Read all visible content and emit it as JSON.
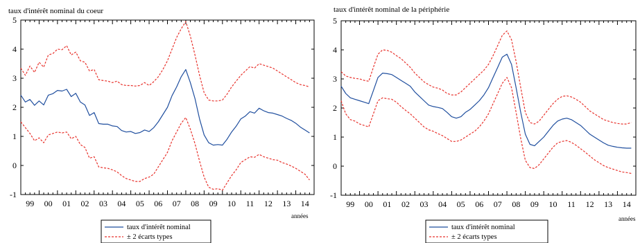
{
  "chart_data": [
    {
      "type": "line",
      "title": "taux d'intérêt nominal du coeur",
      "xlabel": "années",
      "ylabel": "",
      "ylim": [
        -1,
        5
      ],
      "yticks": [
        -1,
        0,
        1,
        2,
        3,
        4,
        5
      ],
      "xlim": [
        1999.0,
        2015.0
      ],
      "xtick_labels": [
        "99",
        "00",
        "01",
        "02",
        "03",
        "04",
        "05",
        "06",
        "07",
        "08",
        "09",
        "10",
        "11",
        "12",
        "13",
        "14"
      ],
      "grid": false,
      "legend_position": "bottom-center",
      "series": [
        {
          "name": "taux d'intérêt nominal",
          "color": "#1f4e9e",
          "style": "solid",
          "x": [
            1999.0,
            1999.25,
            1999.5,
            1999.75,
            2000.0,
            2000.25,
            2000.5,
            2000.75,
            2001.0,
            2001.25,
            2001.5,
            2001.75,
            2002.0,
            2002.25,
            2002.5,
            2002.75,
            2003.0,
            2003.25,
            2003.5,
            2003.75,
            2004.0,
            2004.25,
            2004.5,
            2004.75,
            2005.0,
            2005.25,
            2005.5,
            2005.75,
            2006.0,
            2006.25,
            2006.5,
            2006.75,
            2007.0,
            2007.25,
            2007.5,
            2007.75,
            2008.0,
            2008.25,
            2008.5,
            2008.75,
            2009.0,
            2009.25,
            2009.5,
            2009.75,
            2010.0,
            2010.25,
            2010.5,
            2010.75,
            2011.0,
            2011.25,
            2011.5,
            2011.75,
            2012.0,
            2012.25,
            2012.5,
            2012.75,
            2013.0,
            2013.25,
            2013.5,
            2013.75,
            2014.0,
            2014.25,
            2014.5,
            2014.75
          ],
          "values": [
            2.42,
            2.18,
            2.27,
            2.07,
            2.22,
            2.08,
            2.42,
            2.47,
            2.58,
            2.56,
            2.62,
            2.37,
            2.48,
            2.18,
            2.08,
            1.72,
            1.82,
            1.44,
            1.42,
            1.42,
            1.36,
            1.34,
            1.2,
            1.15,
            1.17,
            1.1,
            1.13,
            1.22,
            1.17,
            1.3,
            1.5,
            1.75,
            2.0,
            2.4,
            2.7,
            3.05,
            3.3,
            2.85,
            2.3,
            1.6,
            1.05,
            0.78,
            0.7,
            0.72,
            0.7,
            0.9,
            1.15,
            1.35,
            1.6,
            1.7,
            1.85,
            1.8,
            1.97,
            1.88,
            1.82,
            1.8,
            1.75,
            1.7,
            1.62,
            1.55,
            1.45,
            1.32,
            1.22,
            1.12
          ]
        },
        {
          "name": "± 2 écarts types",
          "color": "#e8322c",
          "style": "dashed",
          "x": [
            1999.0,
            1999.25,
            1999.5,
            1999.75,
            2000.0,
            2000.25,
            2000.5,
            2000.75,
            2001.0,
            2001.25,
            2001.5,
            2001.75,
            2002.0,
            2002.25,
            2002.5,
            2002.75,
            2003.0,
            2003.25,
            2003.5,
            2003.75,
            2004.0,
            2004.25,
            2004.5,
            2004.75,
            2005.0,
            2005.25,
            2005.5,
            2005.75,
            2006.0,
            2006.25,
            2006.5,
            2006.75,
            2007.0,
            2007.25,
            2007.5,
            2007.75,
            2008.0,
            2008.25,
            2008.5,
            2008.75,
            2009.0,
            2009.25,
            2009.5,
            2009.75,
            2010.0,
            2010.25,
            2010.5,
            2010.75,
            2011.0,
            2011.25,
            2011.5,
            2011.75,
            2012.0,
            2012.25,
            2012.5,
            2012.75,
            2013.0,
            2013.25,
            2013.5,
            2013.75,
            2014.0,
            2014.25,
            2014.5,
            2014.75
          ],
          "values": [
            3.35,
            3.1,
            3.42,
            3.2,
            3.55,
            3.38,
            3.8,
            3.85,
            4.0,
            3.98,
            4.12,
            3.8,
            3.9,
            3.6,
            3.55,
            3.25,
            3.3,
            2.95,
            2.92,
            2.9,
            2.85,
            2.9,
            2.78,
            2.75,
            2.75,
            2.73,
            2.75,
            2.85,
            2.75,
            2.88,
            3.05,
            3.3,
            3.6,
            4.0,
            4.4,
            4.7,
            4.95,
            4.45,
            3.8,
            3.1,
            2.5,
            2.25,
            2.22,
            2.22,
            2.25,
            2.45,
            2.7,
            2.9,
            3.1,
            3.25,
            3.4,
            3.35,
            3.5,
            3.45,
            3.4,
            3.35,
            3.25,
            3.15,
            3.05,
            2.95,
            2.85,
            2.78,
            2.75,
            2.7
          ]
        },
        {
          "name": "",
          "color": "#e8322c",
          "style": "dashed",
          "x": [
            1999.0,
            1999.25,
            1999.5,
            1999.75,
            2000.0,
            2000.25,
            2000.5,
            2000.75,
            2001.0,
            2001.25,
            2001.5,
            2001.75,
            2002.0,
            2002.25,
            2002.5,
            2002.75,
            2003.0,
            2003.25,
            2003.5,
            2003.75,
            2004.0,
            2004.25,
            2004.5,
            2004.75,
            2005.0,
            2005.25,
            2005.5,
            2005.75,
            2006.0,
            2006.25,
            2006.5,
            2006.75,
            2007.0,
            2007.25,
            2007.5,
            2007.75,
            2008.0,
            2008.25,
            2008.5,
            2008.75,
            2009.0,
            2009.25,
            2009.5,
            2009.75,
            2010.0,
            2010.25,
            2010.5,
            2010.75,
            2011.0,
            2011.25,
            2011.5,
            2011.75,
            2012.0,
            2012.25,
            2012.5,
            2012.75,
            2013.0,
            2013.25,
            2013.5,
            2013.75,
            2014.0,
            2014.25,
            2014.5,
            2014.75
          ],
          "values": [
            1.5,
            1.3,
            1.1,
            0.85,
            0.95,
            0.78,
            1.05,
            1.1,
            1.15,
            1.12,
            1.15,
            0.92,
            1.0,
            0.72,
            0.62,
            0.25,
            0.3,
            -0.05,
            -0.08,
            -0.1,
            -0.15,
            -0.22,
            -0.35,
            -0.45,
            -0.5,
            -0.55,
            -0.55,
            -0.45,
            -0.4,
            -0.3,
            -0.05,
            0.2,
            0.45,
            0.85,
            1.15,
            1.45,
            1.65,
            1.25,
            0.75,
            0.15,
            -0.4,
            -0.75,
            -0.82,
            -0.8,
            -0.85,
            -0.6,
            -0.35,
            -0.15,
            0.1,
            0.2,
            0.3,
            0.28,
            0.38,
            0.3,
            0.25,
            0.2,
            0.18,
            0.1,
            0.05,
            -0.02,
            -0.1,
            -0.2,
            -0.3,
            -0.5
          ]
        }
      ]
    },
    {
      "type": "line",
      "title": "taux d'intérêt nominal  de la périphérie",
      "xlabel": "années",
      "ylabel": "",
      "ylim": [
        -1,
        5
      ],
      "yticks": [
        -1,
        0,
        1,
        2,
        3,
        4,
        5
      ],
      "xlim": [
        1999.0,
        2015.0
      ],
      "xtick_labels": [
        "99",
        "00",
        "01",
        "02",
        "03",
        "04",
        "05",
        "06",
        "07",
        "08",
        "09",
        "10",
        "11",
        "12",
        "13",
        "14"
      ],
      "grid": false,
      "legend_position": "bottom-center",
      "series": [
        {
          "name": "taux d'intérêt nominal",
          "color": "#1f4e9e",
          "style": "solid",
          "x": [
            1999.0,
            1999.25,
            1999.5,
            1999.75,
            2000.0,
            2000.25,
            2000.5,
            2000.75,
            2001.0,
            2001.25,
            2001.5,
            2001.75,
            2002.0,
            2002.25,
            2002.5,
            2002.75,
            2003.0,
            2003.25,
            2003.5,
            2003.75,
            2004.0,
            2004.25,
            2004.5,
            2004.75,
            2005.0,
            2005.25,
            2005.5,
            2005.75,
            2006.0,
            2006.25,
            2006.5,
            2006.75,
            2007.0,
            2007.25,
            2007.5,
            2007.75,
            2008.0,
            2008.25,
            2008.5,
            2008.75,
            2009.0,
            2009.25,
            2009.5,
            2009.75,
            2010.0,
            2010.25,
            2010.5,
            2010.75,
            2011.0,
            2011.25,
            2011.5,
            2011.75,
            2012.0,
            2012.25,
            2012.5,
            2012.75,
            2013.0,
            2013.25,
            2013.5,
            2013.75,
            2014.0,
            2014.25,
            2014.5,
            2014.75
          ],
          "values": [
            2.75,
            2.5,
            2.35,
            2.3,
            2.25,
            2.2,
            2.15,
            2.6,
            3.05,
            3.2,
            3.18,
            3.15,
            3.05,
            2.95,
            2.85,
            2.75,
            2.55,
            2.4,
            2.25,
            2.1,
            2.05,
            2.02,
            1.98,
            1.85,
            1.7,
            1.65,
            1.7,
            1.85,
            1.95,
            2.1,
            2.25,
            2.45,
            2.7,
            3.05,
            3.4,
            3.75,
            3.85,
            3.5,
            2.7,
            1.85,
            1.1,
            0.75,
            0.7,
            0.85,
            1.0,
            1.2,
            1.4,
            1.55,
            1.62,
            1.65,
            1.6,
            1.5,
            1.4,
            1.25,
            1.1,
            1.0,
            0.9,
            0.8,
            0.72,
            0.68,
            0.65,
            0.63,
            0.62,
            0.62
          ]
        },
        {
          "name": "± 2 écarts types",
          "color": "#e8322c",
          "style": "dashed",
          "x": [
            1999.0,
            1999.25,
            1999.5,
            1999.75,
            2000.0,
            2000.25,
            2000.5,
            2000.75,
            2001.0,
            2001.25,
            2001.5,
            2001.75,
            2002.0,
            2002.25,
            2002.5,
            2002.75,
            2003.0,
            2003.25,
            2003.5,
            2003.75,
            2004.0,
            2004.25,
            2004.5,
            2004.75,
            2005.0,
            2005.25,
            2005.5,
            2005.75,
            2006.0,
            2006.25,
            2006.5,
            2006.75,
            2007.0,
            2007.25,
            2007.5,
            2007.75,
            2008.0,
            2008.25,
            2008.5,
            2008.75,
            2009.0,
            2009.25,
            2009.5,
            2009.75,
            2010.0,
            2010.25,
            2010.5,
            2010.75,
            2011.0,
            2011.25,
            2011.5,
            2011.75,
            2012.0,
            2012.25,
            2012.5,
            2012.75,
            2013.0,
            2013.25,
            2013.5,
            2013.75,
            2014.0,
            2014.25,
            2014.5,
            2014.75
          ],
          "values": [
            3.25,
            3.1,
            3.05,
            3.02,
            3.0,
            2.95,
            2.92,
            3.4,
            3.85,
            4.0,
            3.98,
            3.92,
            3.8,
            3.7,
            3.55,
            3.4,
            3.2,
            3.05,
            2.9,
            2.8,
            2.72,
            2.68,
            2.62,
            2.5,
            2.45,
            2.45,
            2.55,
            2.7,
            2.85,
            3.0,
            3.15,
            3.3,
            3.5,
            3.8,
            4.15,
            4.5,
            4.65,
            4.35,
            3.6,
            2.7,
            1.85,
            1.5,
            1.45,
            1.55,
            1.75,
            1.95,
            2.15,
            2.3,
            2.4,
            2.42,
            2.38,
            2.3,
            2.2,
            2.05,
            1.9,
            1.8,
            1.7,
            1.6,
            1.55,
            1.5,
            1.47,
            1.45,
            1.45,
            1.5
          ]
        },
        {
          "name": "",
          "color": "#e8322c",
          "style": "dashed",
          "x": [
            1999.0,
            1999.25,
            1999.5,
            1999.75,
            2000.0,
            2000.25,
            2000.5,
            2000.75,
            2001.0,
            2001.25,
            2001.5,
            2001.75,
            2002.0,
            2002.25,
            2002.5,
            2002.75,
            2003.0,
            2003.25,
            2003.5,
            2003.75,
            2004.0,
            2004.25,
            2004.5,
            2004.75,
            2005.0,
            2005.25,
            2005.5,
            2005.75,
            2006.0,
            2006.25,
            2006.5,
            2006.75,
            2007.0,
            2007.25,
            2007.5,
            2007.75,
            2008.0,
            2008.25,
            2008.5,
            2008.75,
            2009.0,
            2009.25,
            2009.5,
            2009.75,
            2010.0,
            2010.25,
            2010.5,
            2010.75,
            2011.0,
            2011.25,
            2011.5,
            2011.75,
            2012.0,
            2012.25,
            2012.5,
            2012.75,
            2013.0,
            2013.25,
            2013.5,
            2013.75,
            2014.0,
            2014.25,
            2014.5,
            2014.75
          ],
          "values": [
            2.25,
            1.8,
            1.6,
            1.55,
            1.45,
            1.4,
            1.35,
            1.8,
            2.25,
            2.35,
            2.32,
            2.3,
            2.2,
            2.05,
            1.92,
            1.8,
            1.65,
            1.5,
            1.35,
            1.25,
            1.2,
            1.12,
            1.05,
            0.95,
            0.85,
            0.85,
            0.9,
            1.0,
            1.1,
            1.2,
            1.35,
            1.55,
            1.8,
            2.15,
            2.5,
            2.85,
            3.05,
            2.7,
            1.85,
            0.95,
            0.2,
            -0.05,
            -0.08,
            0.05,
            0.25,
            0.45,
            0.65,
            0.8,
            0.85,
            0.88,
            0.82,
            0.72,
            0.6,
            0.48,
            0.35,
            0.22,
            0.12,
            0.02,
            -0.05,
            -0.1,
            -0.15,
            -0.2,
            -0.22,
            -0.25
          ]
        }
      ]
    }
  ]
}
